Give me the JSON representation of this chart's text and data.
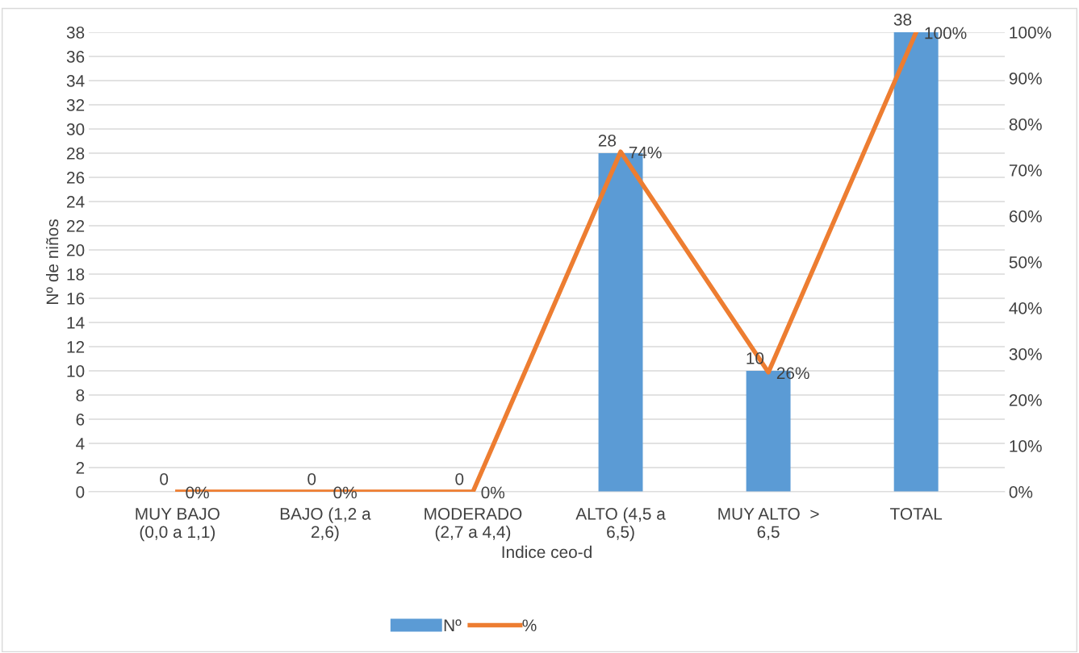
{
  "chart_data": {
    "type": "bar",
    "xlabel": "Indice ceo-d",
    "ylabel": "Nº de niños",
    "categories": [
      "MUY BAJO\n(0,0 a 1,1)",
      "BAJO (1,2 a\n2,6)",
      "MODERADO\n(2,7 a 4,4)",
      "ALTO (4,5 a\n6,5)",
      "MUY ALTO  >\n6,5",
      "TOTAL"
    ],
    "series": [
      {
        "name": "Nº",
        "color": "#5b9bd5",
        "values": [
          0,
          0,
          0,
          28,
          10,
          38
        ]
      },
      {
        "name": "%",
        "type": "line",
        "axis": "y2",
        "color": "#ed7d31",
        "values": [
          0,
          0,
          0,
          74,
          26,
          100
        ],
        "value_labels": [
          "0%",
          "0%",
          "0%",
          "74%",
          "26%",
          "100%"
        ]
      }
    ],
    "data_labels": true,
    "ylim": [
      0,
      38
    ],
    "yticks": [
      0,
      2,
      4,
      6,
      8,
      10,
      12,
      14,
      16,
      18,
      20,
      22,
      24,
      26,
      28,
      30,
      32,
      34,
      36,
      38
    ],
    "y2lim": [
      0,
      100
    ],
    "y2ticks": [
      {
        "value": 0,
        "label": "0%"
      },
      {
        "value": 10,
        "label": "10%"
      },
      {
        "value": 20,
        "label": "20%"
      },
      {
        "value": 30,
        "label": "30%"
      },
      {
        "value": 40,
        "label": "40%"
      },
      {
        "value": 50,
        "label": "50%"
      },
      {
        "value": 60,
        "label": "60%"
      },
      {
        "value": 70,
        "label": "70%"
      },
      {
        "value": 80,
        "label": "80%"
      },
      {
        "value": 90,
        "label": "90%"
      },
      {
        "value": 100,
        "label": "100%"
      }
    ],
    "grid": "y",
    "legend": "bottom",
    "marker": "none"
  }
}
